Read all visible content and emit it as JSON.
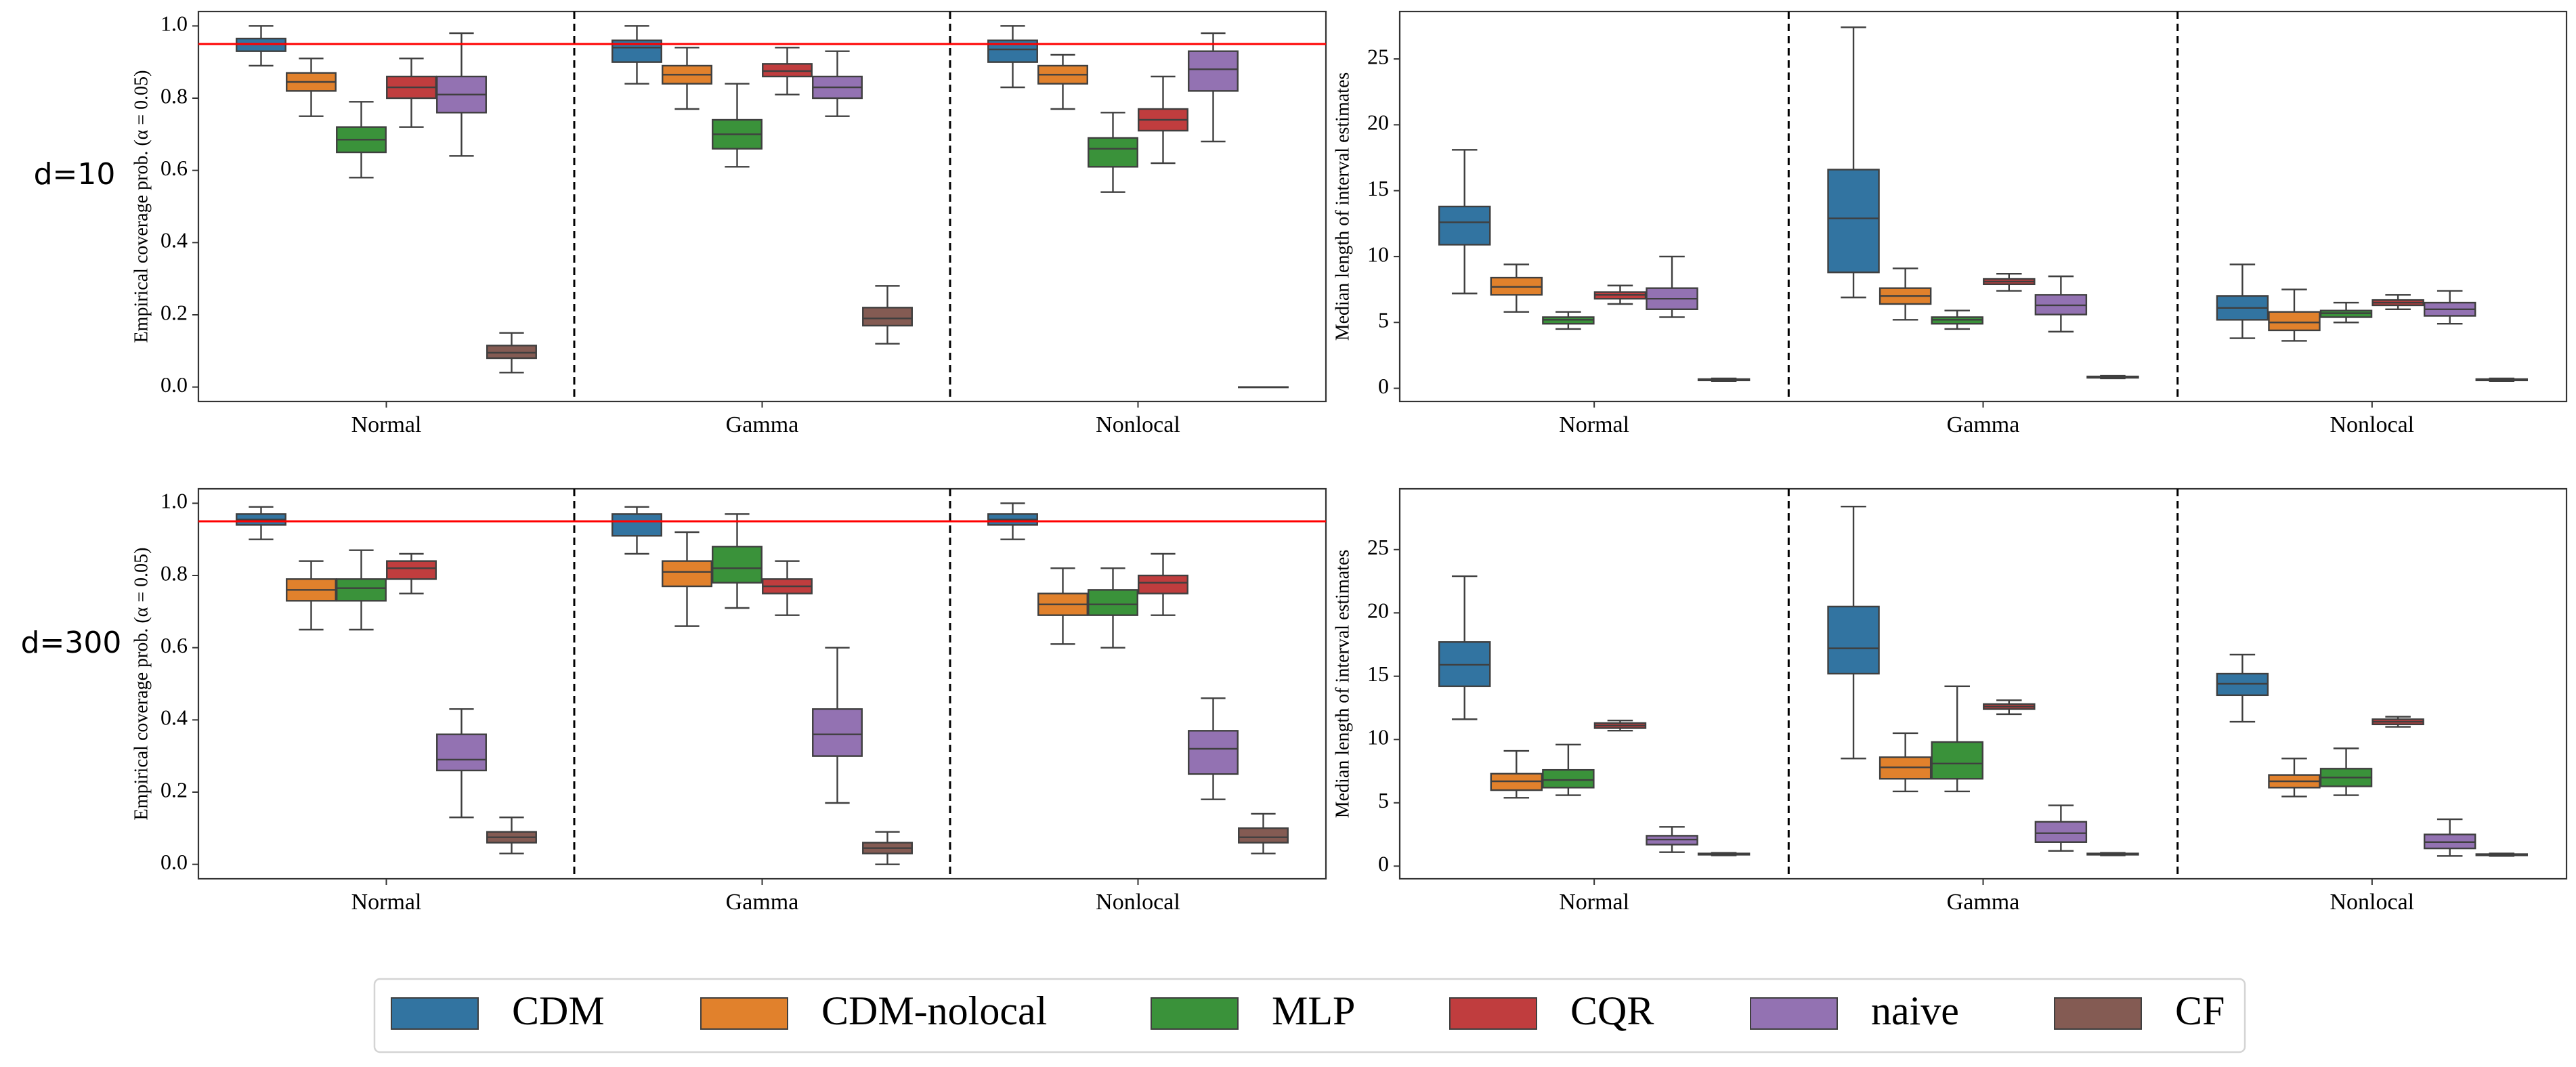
{
  "figure": {
    "row_labels": [
      "d=10",
      "d=300"
    ],
    "methods": [
      {
        "name": "CDM",
        "color": "#3274a1"
      },
      {
        "name": "CDM-nolocal",
        "color": "#e1812c"
      },
      {
        "name": "MLP",
        "color": "#3a923a"
      },
      {
        "name": "CQR",
        "color": "#c03d3e"
      },
      {
        "name": "naive",
        "color": "#9372b2"
      },
      {
        "name": "CF",
        "color": "#845b53"
      }
    ],
    "reference_line_color": "#ff0000"
  },
  "chart_data": [
    {
      "id": "coverage-d10",
      "type": "box",
      "row": "d=10",
      "ylabel": "Empirical coverage prob. (α = 0.05)",
      "ylim": [
        -0.04,
        1.04
      ],
      "yticks": [
        0.0,
        0.2,
        0.4,
        0.6,
        0.8,
        1.0
      ],
      "ytick_labels": [
        "0.0",
        "0.2",
        "0.4",
        "0.6",
        "0.8",
        "1.0"
      ],
      "reference_line": 0.95,
      "categories": [
        "Normal",
        "Gamma",
        "Nonlocal"
      ],
      "series": [
        {
          "name": "CDM",
          "boxes": [
            {
              "whislo": 0.89,
              "q1": 0.93,
              "med": 0.95,
              "q3": 0.965,
              "whishi": 1.0
            },
            {
              "whislo": 0.84,
              "q1": 0.9,
              "med": 0.94,
              "q3": 0.96,
              "whishi": 1.0
            },
            {
              "whislo": 0.83,
              "q1": 0.9,
              "med": 0.935,
              "q3": 0.96,
              "whishi": 1.0
            }
          ]
        },
        {
          "name": "CDM-nolocal",
          "boxes": [
            {
              "whislo": 0.75,
              "q1": 0.82,
              "med": 0.845,
              "q3": 0.87,
              "whishi": 0.91
            },
            {
              "whislo": 0.77,
              "q1": 0.84,
              "med": 0.865,
              "q3": 0.89,
              "whishi": 0.94
            },
            {
              "whislo": 0.77,
              "q1": 0.84,
              "med": 0.865,
              "q3": 0.89,
              "whishi": 0.92
            }
          ]
        },
        {
          "name": "MLP",
          "boxes": [
            {
              "whislo": 0.58,
              "q1": 0.65,
              "med": 0.685,
              "q3": 0.72,
              "whishi": 0.79
            },
            {
              "whislo": 0.61,
              "q1": 0.66,
              "med": 0.7,
              "q3": 0.74,
              "whishi": 0.84
            },
            {
              "whislo": 0.54,
              "q1": 0.61,
              "med": 0.66,
              "q3": 0.69,
              "whishi": 0.76
            }
          ]
        },
        {
          "name": "CQR",
          "boxes": [
            {
              "whislo": 0.72,
              "q1": 0.8,
              "med": 0.83,
              "q3": 0.86,
              "whishi": 0.91
            },
            {
              "whislo": 0.81,
              "q1": 0.86,
              "med": 0.875,
              "q3": 0.895,
              "whishi": 0.94
            },
            {
              "whislo": 0.62,
              "q1": 0.71,
              "med": 0.74,
              "q3": 0.77,
              "whishi": 0.86
            }
          ]
        },
        {
          "name": "naive",
          "boxes": [
            {
              "whislo": 0.64,
              "q1": 0.76,
              "med": 0.81,
              "q3": 0.86,
              "whishi": 0.98
            },
            {
              "whislo": 0.75,
              "q1": 0.8,
              "med": 0.83,
              "q3": 0.86,
              "whishi": 0.93
            },
            {
              "whislo": 0.68,
              "q1": 0.82,
              "med": 0.88,
              "q3": 0.93,
              "whishi": 0.98
            }
          ]
        },
        {
          "name": "CF",
          "boxes": [
            {
              "whislo": 0.04,
              "q1": 0.08,
              "med": 0.095,
              "q3": 0.115,
              "whishi": 0.15
            },
            {
              "whislo": 0.12,
              "q1": 0.17,
              "med": 0.19,
              "q3": 0.22,
              "whishi": 0.28
            },
            {
              "whislo": 0.0,
              "q1": 0.0,
              "med": 0.0,
              "q3": 0.0,
              "whishi": 0.0
            }
          ]
        }
      ]
    },
    {
      "id": "length-d10",
      "type": "box",
      "row": "d=10",
      "ylabel": "Median length of interval estimates",
      "ylim": [
        -1.0,
        28.6
      ],
      "yticks": [
        0,
        5,
        10,
        15,
        20,
        25
      ],
      "ytick_labels": [
        "0",
        "5",
        "10",
        "15",
        "20",
        "25"
      ],
      "reference_line": null,
      "categories": [
        "Normal",
        "Gamma",
        "Nonlocal"
      ],
      "series": [
        {
          "name": "CDM",
          "boxes": [
            {
              "whislo": 7.2,
              "q1": 10.9,
              "med": 12.6,
              "q3": 13.8,
              "whishi": 18.1
            },
            {
              "whislo": 6.9,
              "q1": 8.8,
              "med": 12.9,
              "q3": 16.6,
              "whishi": 27.4
            },
            {
              "whislo": 3.8,
              "q1": 5.2,
              "med": 6.1,
              "q3": 7.0,
              "whishi": 9.4
            }
          ]
        },
        {
          "name": "CDM-nolocal",
          "boxes": [
            {
              "whislo": 5.8,
              "q1": 7.1,
              "med": 7.7,
              "q3": 8.4,
              "whishi": 9.4
            },
            {
              "whislo": 5.2,
              "q1": 6.4,
              "med": 7.0,
              "q3": 7.6,
              "whishi": 9.1
            },
            {
              "whislo": 3.6,
              "q1": 4.4,
              "med": 5.0,
              "q3": 5.8,
              "whishi": 7.5
            }
          ]
        },
        {
          "name": "MLP",
          "boxes": [
            {
              "whislo": 4.5,
              "q1": 4.9,
              "med": 5.2,
              "q3": 5.4,
              "whishi": 5.8
            },
            {
              "whislo": 4.5,
              "q1": 4.9,
              "med": 5.2,
              "q3": 5.4,
              "whishi": 5.9
            },
            {
              "whislo": 5.0,
              "q1": 5.4,
              "med": 5.7,
              "q3": 5.9,
              "whishi": 6.5
            }
          ]
        },
        {
          "name": "CQR",
          "boxes": [
            {
              "whislo": 6.4,
              "q1": 6.8,
              "med": 7.1,
              "q3": 7.3,
              "whishi": 7.8
            },
            {
              "whislo": 7.4,
              "q1": 7.9,
              "med": 8.1,
              "q3": 8.3,
              "whishi": 8.7
            },
            {
              "whislo": 6.0,
              "q1": 6.3,
              "med": 6.5,
              "q3": 6.7,
              "whishi": 7.1
            }
          ]
        },
        {
          "name": "naive",
          "boxes": [
            {
              "whislo": 5.4,
              "q1": 6.0,
              "med": 6.8,
              "q3": 7.6,
              "whishi": 10.0
            },
            {
              "whislo": 4.3,
              "q1": 5.6,
              "med": 6.3,
              "q3": 7.1,
              "whishi": 8.5
            },
            {
              "whislo": 4.9,
              "q1": 5.5,
              "med": 6.0,
              "q3": 6.5,
              "whishi": 7.4
            }
          ]
        },
        {
          "name": "CF",
          "boxes": [
            {
              "whislo": 0.55,
              "q1": 0.6,
              "med": 0.65,
              "q3": 0.7,
              "whishi": 0.75
            },
            {
              "whislo": 0.75,
              "q1": 0.8,
              "med": 0.85,
              "q3": 0.9,
              "whishi": 0.95
            },
            {
              "whislo": 0.55,
              "q1": 0.6,
              "med": 0.65,
              "q3": 0.7,
              "whishi": 0.75
            }
          ]
        }
      ]
    },
    {
      "id": "coverage-d300",
      "type": "box",
      "row": "d=300",
      "ylabel": "Empirical coverage prob. (α = 0.05)",
      "ylim": [
        -0.04,
        1.04
      ],
      "yticks": [
        0.0,
        0.2,
        0.4,
        0.6,
        0.8,
        1.0
      ],
      "ytick_labels": [
        "0.0",
        "0.2",
        "0.4",
        "0.6",
        "0.8",
        "1.0"
      ],
      "reference_line": 0.95,
      "categories": [
        "Normal",
        "Gamma",
        "Nonlocal"
      ],
      "series": [
        {
          "name": "CDM",
          "boxes": [
            {
              "whislo": 0.9,
              "q1": 0.94,
              "med": 0.955,
              "q3": 0.97,
              "whishi": 0.99
            },
            {
              "whislo": 0.86,
              "q1": 0.91,
              "med": 0.95,
              "q3": 0.97,
              "whishi": 0.99
            },
            {
              "whislo": 0.9,
              "q1": 0.94,
              "med": 0.955,
              "q3": 0.97,
              "whishi": 1.0
            }
          ]
        },
        {
          "name": "CDM-nolocal",
          "boxes": [
            {
              "whislo": 0.65,
              "q1": 0.73,
              "med": 0.76,
              "q3": 0.79,
              "whishi": 0.84
            },
            {
              "whislo": 0.66,
              "q1": 0.77,
              "med": 0.81,
              "q3": 0.84,
              "whishi": 0.92
            },
            {
              "whislo": 0.61,
              "q1": 0.69,
              "med": 0.72,
              "q3": 0.75,
              "whishi": 0.82
            }
          ]
        },
        {
          "name": "MLP",
          "boxes": [
            {
              "whislo": 0.65,
              "q1": 0.73,
              "med": 0.765,
              "q3": 0.79,
              "whishi": 0.87
            },
            {
              "whislo": 0.71,
              "q1": 0.78,
              "med": 0.82,
              "q3": 0.88,
              "whishi": 0.97
            },
            {
              "whislo": 0.6,
              "q1": 0.69,
              "med": 0.72,
              "q3": 0.76,
              "whishi": 0.82
            }
          ]
        },
        {
          "name": "CQR",
          "boxes": [
            {
              "whislo": 0.75,
              "q1": 0.79,
              "med": 0.82,
              "q3": 0.84,
              "whishi": 0.86
            },
            {
              "whislo": 0.69,
              "q1": 0.75,
              "med": 0.77,
              "q3": 0.79,
              "whishi": 0.84
            },
            {
              "whislo": 0.69,
              "q1": 0.75,
              "med": 0.78,
              "q3": 0.8,
              "whishi": 0.86
            }
          ]
        },
        {
          "name": "naive",
          "boxes": [
            {
              "whislo": 0.13,
              "q1": 0.26,
              "med": 0.29,
              "q3": 0.36,
              "whishi": 0.43
            },
            {
              "whislo": 0.17,
              "q1": 0.3,
              "med": 0.36,
              "q3": 0.43,
              "whishi": 0.6
            },
            {
              "whislo": 0.18,
              "q1": 0.25,
              "med": 0.32,
              "q3": 0.37,
              "whishi": 0.46
            }
          ]
        },
        {
          "name": "CF",
          "boxes": [
            {
              "whislo": 0.03,
              "q1": 0.06,
              "med": 0.075,
              "q3": 0.09,
              "whishi": 0.13
            },
            {
              "whislo": 0.0,
              "q1": 0.03,
              "med": 0.045,
              "q3": 0.06,
              "whishi": 0.09
            },
            {
              "whislo": 0.03,
              "q1": 0.06,
              "med": 0.075,
              "q3": 0.1,
              "whishi": 0.14
            }
          ]
        }
      ]
    },
    {
      "id": "length-d300",
      "type": "box",
      "row": "d=300",
      "ylabel": "Median length of interval estimates",
      "ylim": [
        -1.0,
        29.8
      ],
      "yticks": [
        0,
        5,
        10,
        15,
        20,
        25
      ],
      "ytick_labels": [
        "0",
        "5",
        "10",
        "15",
        "20",
        "25"
      ],
      "reference_line": null,
      "categories": [
        "Normal",
        "Gamma",
        "Nonlocal"
      ],
      "series": [
        {
          "name": "CDM",
          "boxes": [
            {
              "whislo": 11.6,
              "q1": 14.2,
              "med": 15.9,
              "q3": 17.7,
              "whishi": 22.9
            },
            {
              "whislo": 8.5,
              "q1": 15.2,
              "med": 17.2,
              "q3": 20.5,
              "whishi": 28.4
            },
            {
              "whislo": 11.4,
              "q1": 13.5,
              "med": 14.4,
              "q3": 15.2,
              "whishi": 16.7
            }
          ]
        },
        {
          "name": "CDM-nolocal",
          "boxes": [
            {
              "whislo": 5.4,
              "q1": 6.0,
              "med": 6.7,
              "q3": 7.3,
              "whishi": 9.1
            },
            {
              "whislo": 5.9,
              "q1": 6.9,
              "med": 7.8,
              "q3": 8.6,
              "whishi": 10.5
            },
            {
              "whislo": 5.5,
              "q1": 6.2,
              "med": 6.7,
              "q3": 7.2,
              "whishi": 8.5
            }
          ]
        },
        {
          "name": "MLP",
          "boxes": [
            {
              "whislo": 5.6,
              "q1": 6.2,
              "med": 6.8,
              "q3": 7.6,
              "whishi": 9.6
            },
            {
              "whislo": 5.9,
              "q1": 6.9,
              "med": 8.1,
              "q3": 9.8,
              "whishi": 14.2
            },
            {
              "whislo": 5.6,
              "q1": 6.3,
              "med": 7.0,
              "q3": 7.7,
              "whishi": 9.3
            }
          ]
        },
        {
          "name": "CQR",
          "boxes": [
            {
              "whislo": 10.7,
              "q1": 10.9,
              "med": 11.1,
              "q3": 11.3,
              "whishi": 11.5
            },
            {
              "whislo": 12.0,
              "q1": 12.4,
              "med": 12.6,
              "q3": 12.8,
              "whishi": 13.1
            },
            {
              "whislo": 11.0,
              "q1": 11.2,
              "med": 11.4,
              "q3": 11.6,
              "whishi": 11.8
            }
          ]
        },
        {
          "name": "naive",
          "boxes": [
            {
              "whislo": 1.1,
              "q1": 1.7,
              "med": 2.1,
              "q3": 2.4,
              "whishi": 3.1
            },
            {
              "whislo": 1.2,
              "q1": 1.9,
              "med": 2.6,
              "q3": 3.5,
              "whishi": 4.8
            },
            {
              "whislo": 0.8,
              "q1": 1.4,
              "med": 1.9,
              "q3": 2.5,
              "whishi": 3.7
            }
          ]
        },
        {
          "name": "CF",
          "boxes": [
            {
              "whislo": 0.85,
              "q1": 0.9,
              "med": 0.95,
              "q3": 1.0,
              "whishi": 1.05
            },
            {
              "whislo": 0.85,
              "q1": 0.9,
              "med": 0.95,
              "q3": 1.0,
              "whishi": 1.05
            },
            {
              "whislo": 0.8,
              "q1": 0.85,
              "med": 0.9,
              "q3": 0.95,
              "whishi": 1.0
            }
          ]
        }
      ]
    }
  ]
}
